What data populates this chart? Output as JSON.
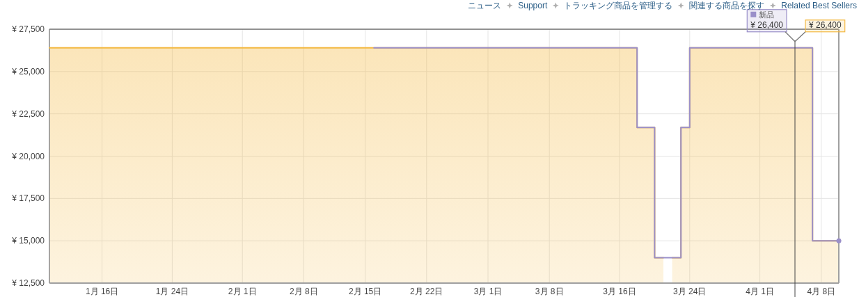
{
  "chart_data": {
    "type": "line",
    "xlim": [
      "--01-10",
      "--04-10"
    ],
    "ylim": [
      12500,
      27500
    ],
    "xticks": [
      {
        "value": "--01-16",
        "label": "1月 16日"
      },
      {
        "value": "--01-24",
        "label": "1月 24日"
      },
      {
        "value": "--02-01",
        "label": "2月 1日"
      },
      {
        "value": "--02-08",
        "label": "2月 8日"
      },
      {
        "value": "--02-15",
        "label": "2月 15日"
      },
      {
        "value": "--02-22",
        "label": "2月 22日"
      },
      {
        "value": "--03-01",
        "label": "3月 1日"
      },
      {
        "value": "--03-08",
        "label": "3月 8日"
      },
      {
        "value": "--03-16",
        "label": "3月 16日"
      },
      {
        "value": "--03-24",
        "label": "3月 24日"
      },
      {
        "value": "--04-01",
        "label": "4月 1日"
      },
      {
        "value": "--04-08",
        "label": "4月 8日"
      }
    ],
    "yticks": [
      {
        "value": 12500,
        "label": "¥ 12,500"
      },
      {
        "value": 15000,
        "label": "¥ 15,000"
      },
      {
        "value": 17500,
        "label": "¥ 17,500"
      },
      {
        "value": 20000,
        "label": "¥ 20,000"
      },
      {
        "value": 22500,
        "label": "¥ 22,500"
      },
      {
        "value": 25000,
        "label": "¥ 25,000"
      },
      {
        "value": 27500,
        "label": "¥ 27,500"
      }
    ],
    "grid": true,
    "series": [
      {
        "name": "新品",
        "color": "#9a8fc9",
        "x": [
          "--02-16",
          "--03-18",
          "--03-18",
          "--03-20",
          "--03-20",
          "--03-23",
          "--03-23",
          "--03-24",
          "--03-24",
          "--04-07",
          "--04-07",
          "--04-10"
        ],
        "values": [
          26400,
          26400,
          21700,
          21700,
          14000,
          14000,
          21700,
          21700,
          26400,
          26400,
          15000,
          15000
        ]
      },
      {
        "type": "area",
        "color": "#f4b942",
        "x": [
          "--03-22",
          "--03-23",
          "--03-23",
          "--03-24",
          "--03-24",
          "--04-07",
          "--04-07",
          "--04-10"
        ],
        "values": [
          14000,
          14000,
          21700,
          21700,
          26400,
          26400,
          15000,
          15000
        ]
      },
      {
        "type": "area",
        "color": "#f4b942",
        "x": [
          "--01-10",
          "--03-18",
          "--03-18",
          "--03-20",
          "--03-20",
          "--03-21"
        ],
        "values": [
          26400,
          26400,
          21700,
          21700,
          14000,
          14000
        ]
      },
      {
        "type": "scatter",
        "color": "#9a8fc9",
        "marker": "circle",
        "x": [
          "--04-10"
        ],
        "values": [
          15000
        ]
      }
    ],
    "ref_lines": [
      {
        "axis": "x",
        "value": "--04-05",
        "color": "#444444"
      }
    ],
    "annotations": [
      "ニュース",
      "Support",
      "トラッキング商品を管理する",
      "関連する商品を探す",
      "Related Best Sellers",
      {
        "text": "¥ 26,400",
        "x": "--04-05",
        "y": 26400
      },
      {
        "text": "¥ 26,400",
        "x": "--04-05",
        "y": 26400
      }
    ]
  }
}
